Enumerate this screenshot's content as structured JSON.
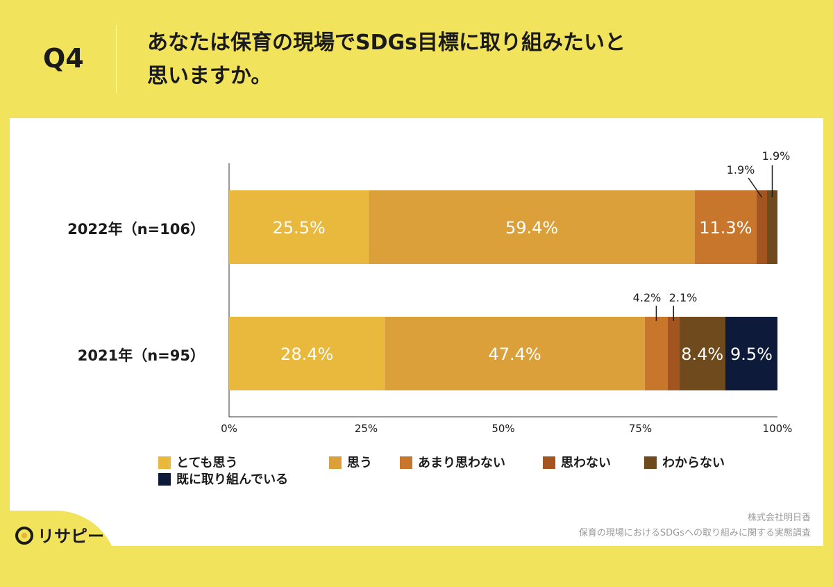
{
  "header": {
    "question_label": "Q4",
    "title_line1": "あなたは保育の現場でSDGs目標に取り組みたいと",
    "title_line2": "思いますか。"
  },
  "colors": {
    "background": "#f2e35d",
    "series": [
      "#e8b93c",
      "#dca03a",
      "#c8762c",
      "#a3541f",
      "#6e4a1c",
      "#0d1a3a"
    ]
  },
  "chart_data": {
    "type": "bar",
    "orientation": "horizontal-stacked",
    "categories": [
      "2022年（n=106）",
      "2021年（n=95）"
    ],
    "series": [
      {
        "name": "とても思う",
        "values": [
          25.5,
          28.4
        ]
      },
      {
        "name": "思う",
        "values": [
          59.4,
          47.4
        ]
      },
      {
        "name": "あまり思わない",
        "values": [
          11.3,
          4.2
        ]
      },
      {
        "name": "思わない",
        "values": [
          1.9,
          2.1
        ]
      },
      {
        "name": "わからない",
        "values": [
          1.9,
          8.4
        ]
      },
      {
        "name": "既に取り組んでいる",
        "values": [
          0,
          9.5
        ]
      }
    ],
    "xlim": [
      0,
      100
    ],
    "x_ticks": [
      "0%",
      "25%",
      "50%",
      "75%",
      "100%"
    ],
    "legend_position": "bottom",
    "data_labels": [
      [
        "25.5%",
        "59.4%",
        "11.3%",
        "1.9%",
        "1.9%",
        ""
      ],
      [
        "28.4%",
        "47.4%",
        "4.2%",
        "2.1%",
        "8.4%",
        "9.5%"
      ]
    ]
  },
  "source": {
    "line1": "株式会社明日香",
    "line2": "保育の現場におけるSDGsへの取り組みに関する実態調査"
  },
  "logo": {
    "text": "リサピー"
  }
}
